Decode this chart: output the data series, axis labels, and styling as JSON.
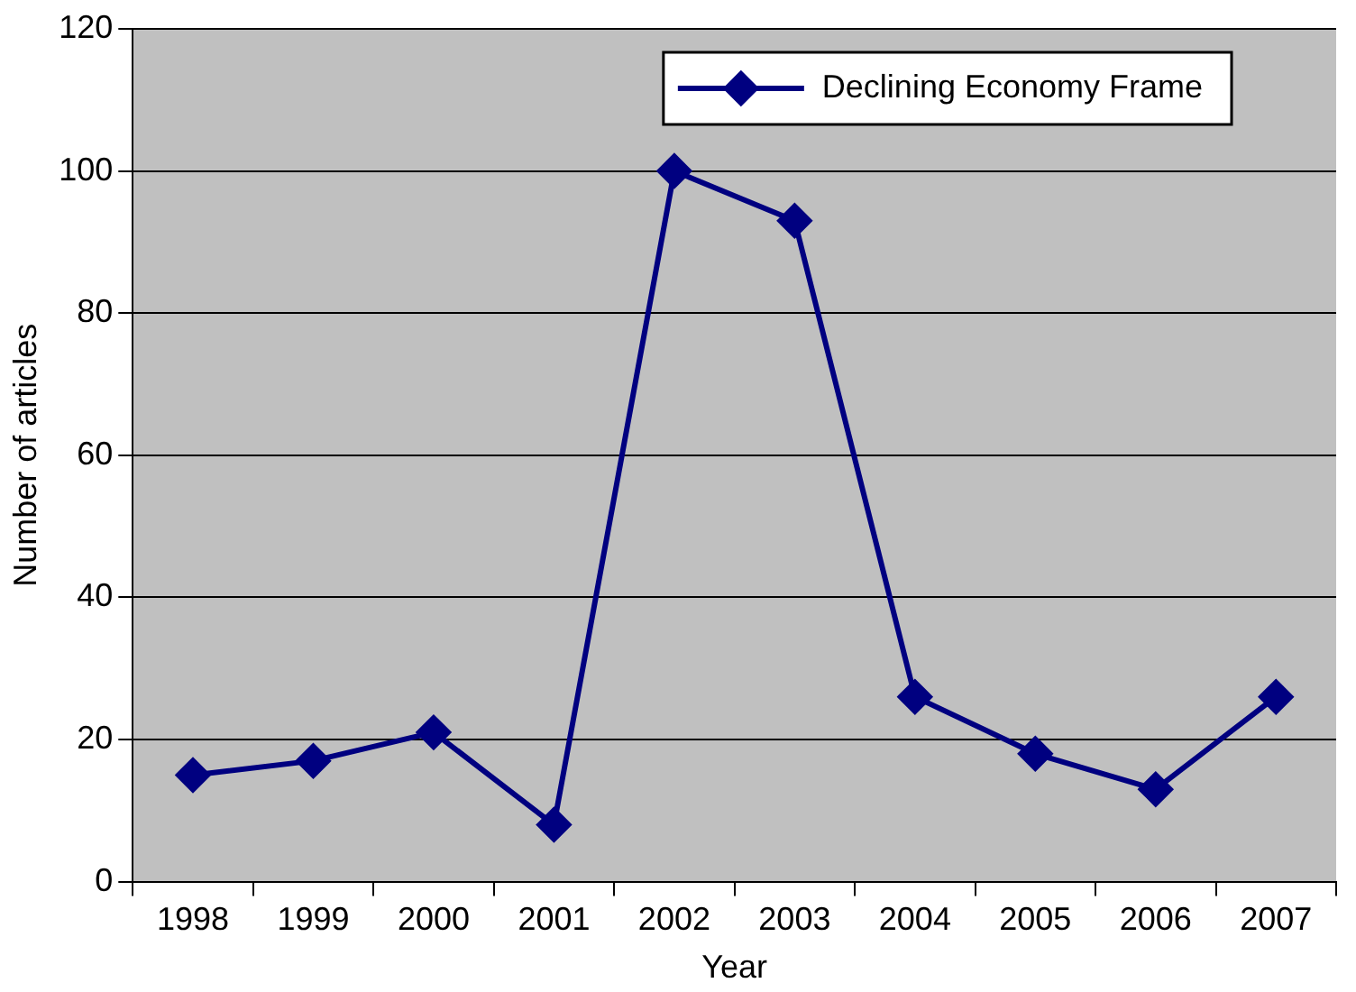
{
  "chart_data": {
    "type": "line",
    "xlabel": "Year",
    "ylabel": "Number of articles",
    "categories": [
      "1998",
      "1999",
      "2000",
      "2001",
      "2002",
      "2003",
      "2004",
      "2005",
      "2006",
      "2007"
    ],
    "series": [
      {
        "name": "Declining Economy Frame",
        "color": "#000080",
        "values": [
          15,
          17,
          21,
          8,
          100,
          93,
          26,
          18,
          13,
          26
        ]
      }
    ],
    "ylim": [
      0,
      120
    ],
    "yticks": [
      0,
      20,
      40,
      60,
      80,
      100,
      120
    ],
    "grid": "y",
    "legend": "top right",
    "marker": "diamond",
    "line_style": "solid"
  }
}
